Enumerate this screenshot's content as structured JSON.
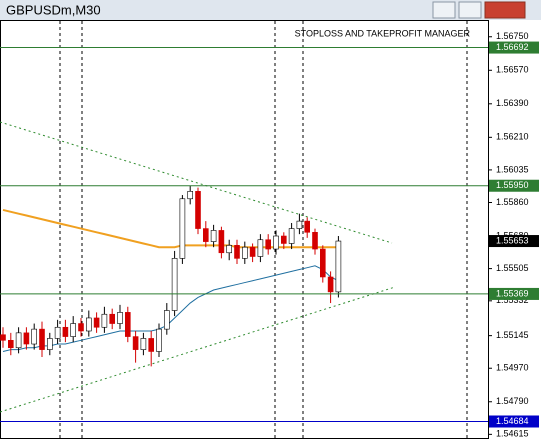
{
  "chart_data": {
    "type": "candlestick",
    "title": "GBPUSDm,M30",
    "annotation": "STOPLOSS AND TAKEPROFIT MANAGER",
    "ylim": [
      1.5459,
      1.5684
    ],
    "yticks": [
      {
        "value": 1.5675,
        "label": "1.56750"
      },
      {
        "value": 1.5657,
        "label": "1.56570"
      },
      {
        "value": 1.5639,
        "label": "1.56390"
      },
      {
        "value": 1.5621,
        "label": "1.56210"
      },
      {
        "value": 1.56035,
        "label": "1.56035"
      },
      {
        "value": 1.5586,
        "label": "1.55860"
      },
      {
        "value": 1.5568,
        "label": "1.55680"
      },
      {
        "value": 1.55505,
        "label": "1.55505"
      },
      {
        "value": 1.55332,
        "label": "1.55332"
      },
      {
        "value": 1.55145,
        "label": "1.55145"
      },
      {
        "value": 1.5497,
        "label": "1.54970"
      },
      {
        "value": 1.5479,
        "label": "1.54790"
      },
      {
        "value": 1.54615,
        "label": "1.54615"
      }
    ],
    "levels": [
      {
        "value": 1.56692,
        "label": "1.56692",
        "color": "#2e7d32"
      },
      {
        "value": 1.5595,
        "label": "1.55950",
        "color": "#2e7d32"
      },
      {
        "value": 1.55653,
        "label": "1.55653",
        "color": "#000000"
      },
      {
        "value": 1.55369,
        "label": "1.55369",
        "color": "#2e7d32"
      },
      {
        "value": 1.54684,
        "label": "1.54684",
        "color": "#0000c8"
      }
    ],
    "up_color": "#ffffff",
    "down_color": "#d40000",
    "open": [
      1.5515,
      1.5512,
      1.5508,
      1.5516,
      1.551,
      1.5518,
      1.5507,
      1.5513,
      1.5519,
      1.5514,
      1.5521,
      1.5517,
      1.5524,
      1.5519,
      1.5526,
      1.5521,
      1.5527,
      1.5514,
      1.5507,
      1.5513,
      1.5506,
      1.5518,
      1.5528,
      1.5556,
      1.5588,
      1.5592,
      1.5572,
      1.5565,
      1.5571,
      1.5559,
      1.5563,
      1.5556,
      1.5562,
      1.5557,
      1.5566,
      1.5561,
      1.5568,
      1.5564,
      1.5572,
      1.5576,
      1.557,
      1.5561,
      1.5546,
      1.5538
    ],
    "high": [
      1.5519,
      1.5516,
      1.5519,
      1.5519,
      1.5521,
      1.5522,
      1.5516,
      1.5523,
      1.5523,
      1.5525,
      1.5524,
      1.5528,
      1.5527,
      1.553,
      1.5529,
      1.5531,
      1.553,
      1.5517,
      1.5516,
      1.5517,
      1.5521,
      1.5532,
      1.556,
      1.559,
      1.5595,
      1.5594,
      1.5576,
      1.5574,
      1.5573,
      1.5566,
      1.5566,
      1.5565,
      1.5564,
      1.5569,
      1.5569,
      1.5571,
      1.557,
      1.5575,
      1.558,
      1.5578,
      1.5572,
      1.5563,
      1.5549,
      1.5568
    ],
    "low": [
      1.5508,
      1.5504,
      1.5505,
      1.5507,
      1.5507,
      1.5503,
      1.5504,
      1.551,
      1.5511,
      1.5511,
      1.5514,
      1.5514,
      1.5516,
      1.5516,
      1.5518,
      1.5518,
      1.5511,
      1.55,
      1.5504,
      1.5498,
      1.5503,
      1.5515,
      1.5525,
      1.5553,
      1.5585,
      1.5569,
      1.5562,
      1.5562,
      1.5556,
      1.5555,
      1.5553,
      1.5553,
      1.5554,
      1.5554,
      1.5558,
      1.5558,
      1.5561,
      1.5561,
      1.5569,
      1.5567,
      1.5558,
      1.5543,
      1.5532,
      1.5535
    ],
    "close": [
      1.5512,
      1.5508,
      1.5516,
      1.551,
      1.5518,
      1.5507,
      1.5513,
      1.5519,
      1.5514,
      1.5521,
      1.5517,
      1.5524,
      1.5519,
      1.5526,
      1.5521,
      1.5527,
      1.5514,
      1.5507,
      1.5513,
      1.5506,
      1.5518,
      1.5528,
      1.5556,
      1.5588,
      1.5592,
      1.5572,
      1.5565,
      1.5571,
      1.5559,
      1.5563,
      1.5556,
      1.5562,
      1.5557,
      1.5566,
      1.5561,
      1.5568,
      1.5564,
      1.5572,
      1.5576,
      1.557,
      1.5561,
      1.5546,
      1.5538,
      1.55653
    ],
    "series": [
      {
        "color": "#f0a020",
        "values": [
          1.5582,
          1.5581,
          1.558,
          1.5579,
          1.5578,
          1.5577,
          1.5576,
          1.5575,
          1.5574,
          1.5573,
          1.5572,
          1.5571,
          1.557,
          1.5569,
          1.5568,
          1.5567,
          1.5566,
          1.5565,
          1.5564,
          1.5563,
          1.5562,
          1.5562,
          1.5562,
          1.5563,
          1.5563,
          1.5563,
          1.5563,
          1.5563,
          1.5563,
          1.5563,
          1.5562,
          1.5562,
          1.5562,
          1.5562,
          1.5562,
          1.5562,
          1.5562,
          1.5562,
          1.5562,
          1.5562,
          1.5562,
          1.5562,
          1.5562,
          1.5562
        ]
      },
      {
        "color": "#1f6fa0",
        "values": [
          1.5506,
          1.5507,
          1.5507,
          1.5508,
          1.5508,
          1.5509,
          1.5509,
          1.551,
          1.551,
          1.5511,
          1.5512,
          1.5513,
          1.5514,
          1.5515,
          1.5516,
          1.5517,
          1.5517,
          1.5517,
          1.5517,
          1.5517,
          1.5518,
          1.552,
          1.5524,
          1.5528,
          1.5532,
          1.5535,
          1.5537,
          1.5539,
          1.554,
          1.5541,
          1.5542,
          1.5543,
          1.5544,
          1.5545,
          1.5546,
          1.5547,
          1.5548,
          1.5549,
          1.555,
          1.5551,
          1.5552,
          1.555,
          1.5546,
          1.5544
        ]
      }
    ]
  }
}
